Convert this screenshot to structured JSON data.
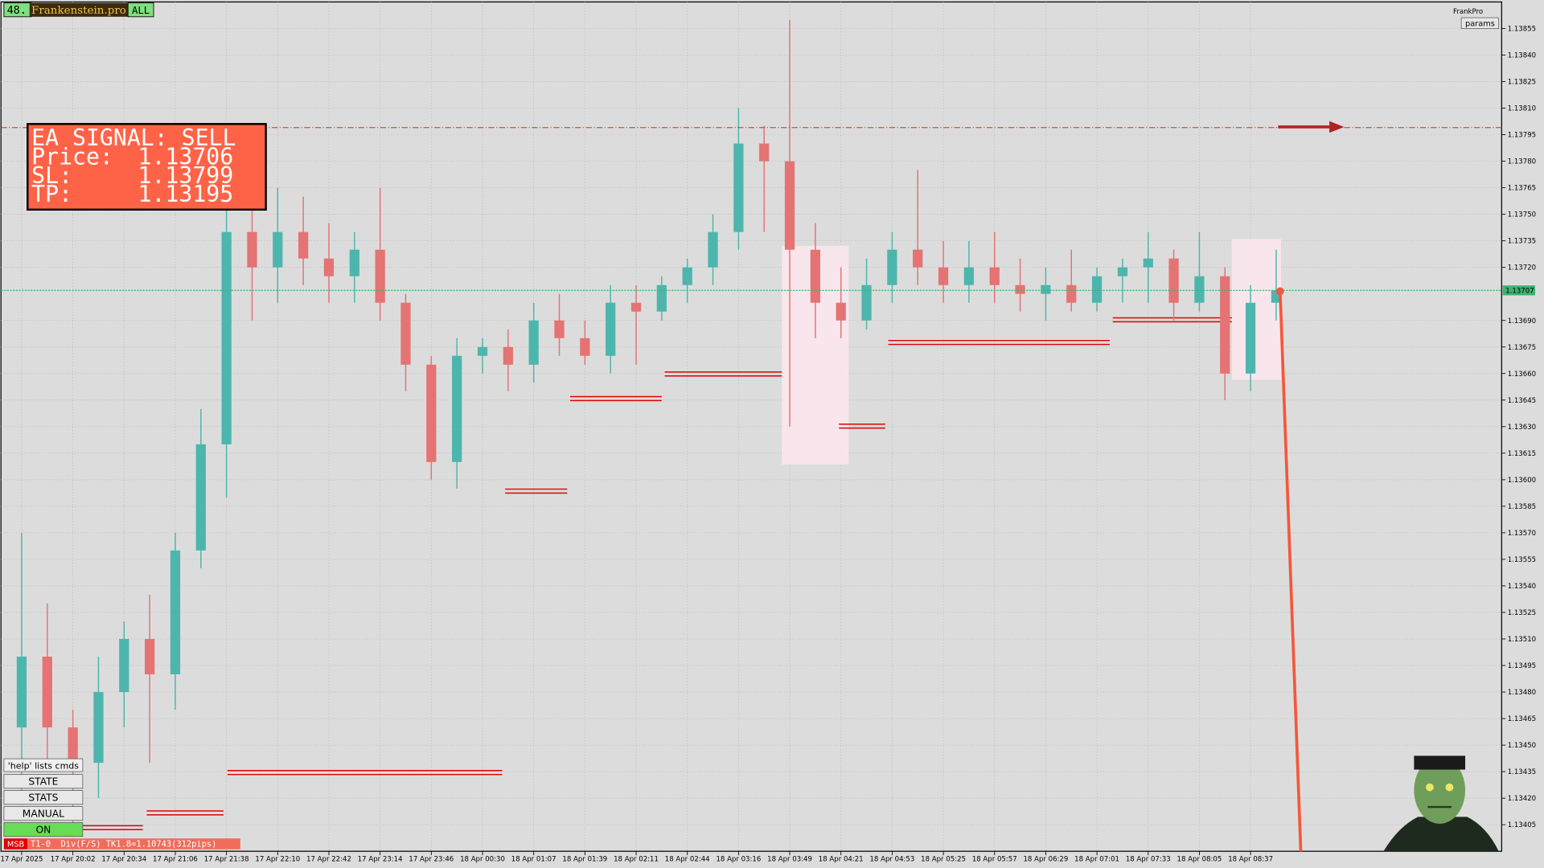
{
  "chart_data": {
    "type": "candlestick",
    "categories": [
      "17 Apr 2025",
      null,
      "17 Apr 20:02",
      null,
      "17 Apr 20:34",
      null,
      "17 Apr 21:06",
      null,
      "17 Apr 21:38",
      null,
      "17 Apr 22:10",
      null,
      "17 Apr 22:42",
      null,
      "17 Apr 23:14",
      null,
      "17 Apr 23:46",
      null,
      "18 Apr 00:30",
      null,
      "18 Apr 01:07",
      null,
      "18 Apr 01:39",
      null,
      "18 Apr 02:11",
      null,
      "18 Apr 02:44",
      null,
      "18 Apr 03:16",
      null,
      "18 Apr 03:49",
      null,
      "18 Apr 04:21",
      null,
      "18 Apr 04:53",
      null,
      "18 Apr 05:25",
      null,
      "18 Apr 05:57",
      null,
      "18 Apr 06:29",
      null,
      "18 Apr 07:01",
      null,
      "18 Apr 07:33",
      null,
      "18 Apr 08:05",
      null,
      "18 Apr 08:37",
      null
    ],
    "open": [
      1.1346,
      1.135,
      1.1346,
      1.1344,
      1.1348,
      1.1351,
      1.1349,
      1.1356,
      1.1362,
      1.1374,
      1.1372,
      1.1374,
      1.13725,
      1.13715,
      1.1373,
      1.137,
      1.13665,
      1.1361,
      1.1367,
      1.13675,
      1.13665,
      1.1369,
      1.1368,
      1.1367,
      1.137,
      1.13695,
      1.1371,
      1.1372,
      1.1374,
      1.1379,
      1.1378,
      1.1373,
      1.137,
      1.1369,
      1.1371,
      1.1373,
      1.1372,
      1.1371,
      1.1372,
      1.1371,
      1.13705,
      1.1371,
      1.137,
      1.13715,
      1.1372,
      1.13725,
      1.137,
      1.13715,
      1.1366,
      1.137
    ],
    "high": [
      1.1357,
      1.1353,
      1.1347,
      1.135,
      1.1352,
      1.13535,
      1.1357,
      1.1364,
      1.1376,
      1.1376,
      1.13765,
      1.1376,
      1.13745,
      1.1374,
      1.13765,
      1.13705,
      1.1367,
      1.1368,
      1.1368,
      1.13685,
      1.137,
      1.13705,
      1.1369,
      1.1371,
      1.1371,
      1.13715,
      1.13725,
      1.1375,
      1.1381,
      1.138,
      1.1386,
      1.13745,
      1.1372,
      1.13725,
      1.1374,
      1.13775,
      1.13735,
      1.13735,
      1.1374,
      1.13725,
      1.1372,
      1.1373,
      1.1372,
      1.13725,
      1.1374,
      1.1373,
      1.1374,
      1.1372,
      1.1371,
      1.1373
    ],
    "low": [
      1.1342,
      1.1344,
      1.134,
      1.1342,
      1.1346,
      1.1344,
      1.1347,
      1.1355,
      1.1359,
      1.1369,
      1.137,
      1.1371,
      1.137,
      1.137,
      1.1369,
      1.1365,
      1.136,
      1.13595,
      1.1366,
      1.1365,
      1.13655,
      1.1367,
      1.13665,
      1.1366,
      1.13665,
      1.1369,
      1.137,
      1.1371,
      1.1373,
      1.1374,
      1.1363,
      1.1368,
      1.1368,
      1.13685,
      1.137,
      1.1371,
      1.137,
      1.137,
      1.137,
      1.13695,
      1.1369,
      1.13695,
      1.13695,
      1.137,
      1.137,
      1.1369,
      1.13695,
      1.13645,
      1.1365,
      1.1369
    ],
    "close": [
      1.135,
      1.1346,
      1.1344,
      1.1348,
      1.1351,
      1.1349,
      1.1356,
      1.1362,
      1.1374,
      1.1372,
      1.1374,
      1.13725,
      1.13715,
      1.1373,
      1.137,
      1.13665,
      1.1361,
      1.1367,
      1.13675,
      1.13665,
      1.1369,
      1.1368,
      1.1367,
      1.137,
      1.13695,
      1.1371,
      1.1372,
      1.1374,
      1.1379,
      1.1378,
      1.1373,
      1.137,
      1.1369,
      1.1371,
      1.1373,
      1.1372,
      1.1371,
      1.1372,
      1.1371,
      1.13705,
      1.1371,
      1.137,
      1.13715,
      1.1372,
      1.13725,
      1.137,
      1.13715,
      1.1366,
      1.137,
      1.13707
    ],
    "up_color": "#4db6ac",
    "down_color": "#e57373",
    "ylim": [
      1.1339,
      1.1387
    ],
    "yticks": [
      1.13405,
      {
        "value": 1.1342,
        "label": "1.13420"
      },
      1.13435,
      {
        "value": 1.1345,
        "label": "1.13450"
      },
      1.13465,
      {
        "value": 1.1348,
        "label": "1.13480"
      },
      1.13495,
      {
        "value": 1.1351,
        "label": "1.13510"
      },
      1.13525,
      {
        "value": 1.1354,
        "label": "1.13540"
      },
      1.13555,
      {
        "value": 1.1357,
        "label": "1.13570"
      },
      1.13585,
      {
        "value": 1.136,
        "label": "1.13600"
      },
      1.13615,
      {
        "value": 1.1363,
        "label": "1.13630"
      },
      1.13645,
      {
        "value": 1.1366,
        "label": "1.13660"
      },
      1.13675,
      {
        "value": 1.1369,
        "label": "1.13690"
      },
      {
        "value": 1.1372,
        "label": "1.13720"
      },
      1.13735,
      {
        "value": 1.1375,
        "label": "1.13750"
      },
      1.13765,
      {
        "value": 1.1378,
        "label": "1.13780"
      },
      1.13795,
      {
        "value": 1.1381,
        "label": "1.13810"
      },
      1.13825,
      {
        "value": 1.1384,
        "label": "1.13840"
      },
      1.13855
    ],
    "grid": true,
    "current_price": 1.13707,
    "signal": {
      "title": "EA SIGNAL: SELL",
      "price_label": "Price:",
      "price": 1.13706,
      "sl_label": "SL:",
      "sl": 1.13799,
      "tp_label": "TP:",
      "tp": 1.13195
    },
    "header": {
      "counter": "48.",
      "brand": "Frankenstein.pro",
      "mode": "ALL",
      "corner": "FrankPro",
      "params": "params"
    },
    "buttons": {
      "help": "'help' lists cmds",
      "items": [
        "STATE",
        "STATS",
        "MANUAL",
        "ON"
      ]
    },
    "status": {
      "tag": "MSB",
      "text": "T1-0  Div(F/S) TK1.8=1.10743(312pips)"
    }
  }
}
